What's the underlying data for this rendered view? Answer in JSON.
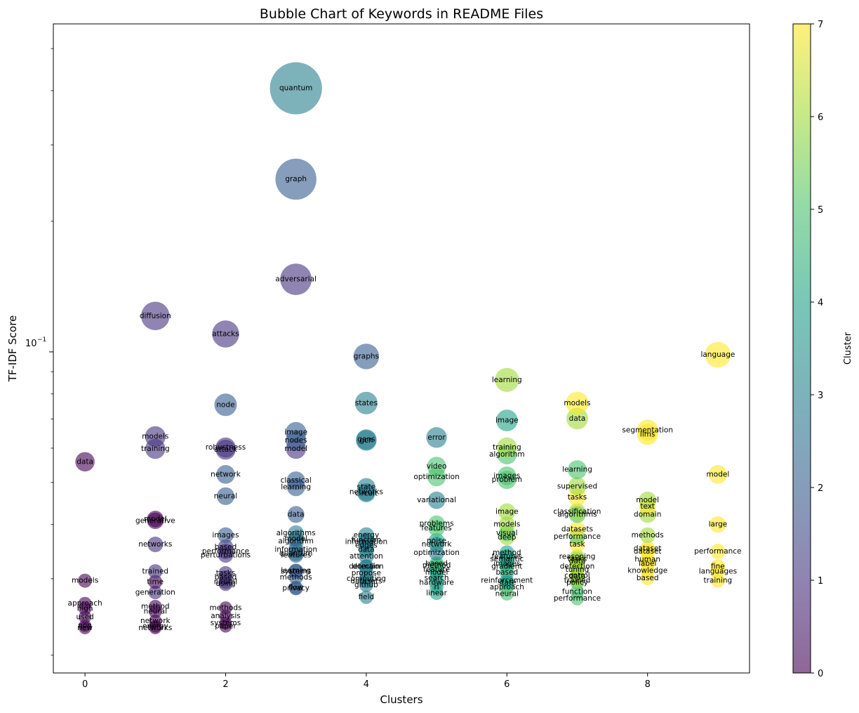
{
  "chart_data": {
    "type": "scatter",
    "title": "Bubble Chart of Keywords in README Files",
    "xlabel": "Clusters",
    "ylabel": "TF-IDF Score",
    "y_scale": "log",
    "xlim": [
      -0.45,
      9.45
    ],
    "ylim": [
      0.0182,
      0.57
    ],
    "x_ticks": [
      0,
      2,
      4,
      6,
      8
    ],
    "y_tick_label": "10^-1",
    "grid": false,
    "colormap": "viridis",
    "colorbar": {
      "label": "Cluster",
      "ticks": [
        0,
        1,
        2,
        3,
        4,
        5,
        6,
        7
      ]
    },
    "points": [
      {
        "x": 3,
        "y": 0.405,
        "label": "quantum",
        "cluster": 3
      },
      {
        "x": 3,
        "y": 0.25,
        "label": "graph",
        "cluster": 2
      },
      {
        "x": 3,
        "y": 0.147,
        "label": "adversarial",
        "cluster": 1
      },
      {
        "x": 1,
        "y": 0.121,
        "label": "diffusion",
        "cluster": 1
      },
      {
        "x": 2,
        "y": 0.11,
        "label": "attacks",
        "cluster": 1
      },
      {
        "x": 4,
        "y": 0.0976,
        "label": "graphs",
        "cluster": 2
      },
      {
        "x": 9,
        "y": 0.0985,
        "label": "language",
        "cluster": 7
      },
      {
        "x": 6,
        "y": 0.0862,
        "label": "learning",
        "cluster": 6
      },
      {
        "x": 7,
        "y": 0.0762,
        "label": "models",
        "cluster": 7
      },
      {
        "x": 2,
        "y": 0.0755,
        "label": "node",
        "cluster": 2
      },
      {
        "x": 4,
        "y": 0.0762,
        "label": "states",
        "cluster": 3
      },
      {
        "x": 7,
        "y": 0.0702,
        "label": "data",
        "cluster": 6
      },
      {
        "x": 6,
        "y": 0.0695,
        "label": "image",
        "cluster": 4
      },
      {
        "x": 8,
        "y": 0.066,
        "label": "segmentation",
        "cluster": 7
      },
      {
        "x": 8,
        "y": 0.0645,
        "label": "llms",
        "cluster": 7
      },
      {
        "x": 1,
        "y": 0.0638,
        "label": "models",
        "cluster": 1
      },
      {
        "x": 3,
        "y": 0.0652,
        "label": "image",
        "cluster": 2
      },
      {
        "x": 3,
        "y": 0.0625,
        "label": "nodes",
        "cluster": 2
      },
      {
        "x": 5,
        "y": 0.0635,
        "label": "error",
        "cluster": 3
      },
      {
        "x": 4,
        "y": 0.0628,
        "label": "gans",
        "cluster": 3
      },
      {
        "x": 4,
        "y": 0.0625,
        "label": "gcn",
        "cluster": 3
      },
      {
        "x": 1,
        "y": 0.0598,
        "label": "training",
        "cluster": 1
      },
      {
        "x": 2,
        "y": 0.0602,
        "label": "robustness",
        "cluster": 1
      },
      {
        "x": 2,
        "y": 0.0595,
        "label": "attack",
        "cluster": 1
      },
      {
        "x": 3,
        "y": 0.0598,
        "label": "model",
        "cluster": 1
      },
      {
        "x": 6,
        "y": 0.0602,
        "label": "training",
        "cluster": 6
      },
      {
        "x": 6,
        "y": 0.058,
        "label": "algorithm",
        "cluster": 5
      },
      {
        "x": 0,
        "y": 0.0558,
        "label": "data",
        "cluster": 0
      },
      {
        "x": 5,
        "y": 0.0545,
        "label": "video",
        "cluster": 5
      },
      {
        "x": 7,
        "y": 0.0535,
        "label": "learning",
        "cluster": 5
      },
      {
        "x": 2,
        "y": 0.0522,
        "label": "network",
        "cluster": 2
      },
      {
        "x": 5,
        "y": 0.0515,
        "label": "optimization",
        "cluster": 5
      },
      {
        "x": 6,
        "y": 0.0518,
        "label": "images",
        "cluster": 5
      },
      {
        "x": 6,
        "y": 0.0507,
        "label": "problem",
        "cluster": 5
      },
      {
        "x": 3,
        "y": 0.0505,
        "label": "classical",
        "cluster": 2
      },
      {
        "x": 3,
        "y": 0.0488,
        "label": "learning",
        "cluster": 2
      },
      {
        "x": 7,
        "y": 0.049,
        "label": "supervised",
        "cluster": 6
      },
      {
        "x": 4,
        "y": 0.0488,
        "label": "state",
        "cluster": 3
      },
      {
        "x": 4,
        "y": 0.0475,
        "label": "networks",
        "cluster": 3
      },
      {
        "x": 4,
        "y": 0.0472,
        "label": "circuit",
        "cluster": 3
      },
      {
        "x": 9,
        "y": 0.0522,
        "label": "model",
        "cluster": 7
      },
      {
        "x": 2,
        "y": 0.0465,
        "label": "neural",
        "cluster": 2
      },
      {
        "x": 7,
        "y": 0.0462,
        "label": "tasks",
        "cluster": 7
      },
      {
        "x": 5,
        "y": 0.0455,
        "label": "variational",
        "cluster": 3
      },
      {
        "x": 8,
        "y": 0.0455,
        "label": "model",
        "cluster": 6
      },
      {
        "x": 8,
        "y": 0.044,
        "label": "text",
        "cluster": 7
      },
      {
        "x": 6,
        "y": 0.0428,
        "label": "image",
        "cluster": 6
      },
      {
        "x": 7,
        "y": 0.0428,
        "label": "classification",
        "cluster": 6
      },
      {
        "x": 7,
        "y": 0.0422,
        "label": "algorithms",
        "cluster": 5
      },
      {
        "x": 8,
        "y": 0.0422,
        "label": "domain",
        "cluster": 6
      },
      {
        "x": 3,
        "y": 0.0422,
        "label": "data",
        "cluster": 2
      },
      {
        "x": 1,
        "y": 0.0412,
        "label": "model",
        "cluster": 0
      },
      {
        "x": 1,
        "y": 0.0408,
        "label": "generative",
        "cluster": 0
      },
      {
        "x": 5,
        "y": 0.0402,
        "label": "problems",
        "cluster": 5
      },
      {
        "x": 5,
        "y": 0.0392,
        "label": "features",
        "cluster": 5
      },
      {
        "x": 6,
        "y": 0.04,
        "label": "models",
        "cluster": 6
      },
      {
        "x": 9,
        "y": 0.04,
        "label": "large",
        "cluster": 7
      },
      {
        "x": 7,
        "y": 0.039,
        "label": "datasets",
        "cluster": 7
      },
      {
        "x": 6,
        "y": 0.0382,
        "label": "visual",
        "cluster": 5
      },
      {
        "x": 6,
        "y": 0.0374,
        "label": "deep",
        "cluster": 6
      },
      {
        "x": 3,
        "y": 0.0382,
        "label": "algorithms",
        "cluster": 3
      },
      {
        "x": 3,
        "y": 0.0371,
        "label": "model",
        "cluster": 2
      },
      {
        "x": 3,
        "y": 0.0366,
        "label": "algorithm",
        "cluster": 3
      },
      {
        "x": 4,
        "y": 0.0378,
        "label": "energy",
        "cluster": 3
      },
      {
        "x": 4,
        "y": 0.0368,
        "label": "function",
        "cluster": 3
      },
      {
        "x": 4,
        "y": 0.0365,
        "label": "information",
        "cluster": 3
      },
      {
        "x": 4,
        "y": 0.0358,
        "label": "edges",
        "cluster": 3
      },
      {
        "x": 2,
        "y": 0.0378,
        "label": "images",
        "cluster": 2
      },
      {
        "x": 7,
        "y": 0.0375,
        "label": "performance",
        "cluster": 5
      },
      {
        "x": 8,
        "y": 0.0378,
        "label": "methods",
        "cluster": 6
      },
      {
        "x": 5,
        "y": 0.0367,
        "label": "noise",
        "cluster": 4
      },
      {
        "x": 5,
        "y": 0.036,
        "label": "network",
        "cluster": 3
      },
      {
        "x": 1,
        "y": 0.036,
        "label": "networks",
        "cluster": 1
      },
      {
        "x": 7,
        "y": 0.036,
        "label": "task",
        "cluster": 7
      },
      {
        "x": 2,
        "y": 0.0355,
        "label": "based",
        "cluster": 1
      },
      {
        "x": 3,
        "y": 0.035,
        "label": "information",
        "cluster": 2
      },
      {
        "x": 3,
        "y": 0.0343,
        "label": "quantum",
        "cluster": 3
      },
      {
        "x": 3,
        "y": 0.034,
        "label": "features",
        "cluster": 2
      },
      {
        "x": 4,
        "y": 0.035,
        "label": "data",
        "cluster": 3
      },
      {
        "x": 2,
        "y": 0.0347,
        "label": "performance",
        "cluster": 1
      },
      {
        "x": 2,
        "y": 0.034,
        "label": "perturbations",
        "cluster": 1
      },
      {
        "x": 5,
        "y": 0.0344,
        "label": "optimization",
        "cluster": 3
      },
      {
        "x": 6,
        "y": 0.0344,
        "label": "method",
        "cluster": 4
      },
      {
        "x": 6,
        "y": 0.0337,
        "label": "features",
        "cluster": 4
      },
      {
        "x": 6,
        "y": 0.0333,
        "label": "semantic",
        "cluster": 4
      },
      {
        "x": 8,
        "y": 0.0352,
        "label": "dataset",
        "cluster": 7
      },
      {
        "x": 8,
        "y": 0.0347,
        "label": "dataset",
        "cluster": 7
      },
      {
        "x": 9,
        "y": 0.0347,
        "label": "performance",
        "cluster": 7
      },
      {
        "x": 4,
        "y": 0.0338,
        "label": "attention",
        "cluster": 3
      },
      {
        "x": 7,
        "y": 0.0337,
        "label": "reasoning",
        "cluster": 6
      },
      {
        "x": 7,
        "y": 0.0333,
        "label": "tasks",
        "cluster": 6
      },
      {
        "x": 7,
        "y": 0.0329,
        "label": "data",
        "cluster": 6
      },
      {
        "x": 8,
        "y": 0.0332,
        "label": "human",
        "cluster": 7
      },
      {
        "x": 8,
        "y": 0.0325,
        "label": "label",
        "cluster": 7
      },
      {
        "x": 6,
        "y": 0.0325,
        "label": "images",
        "cluster": 4
      },
      {
        "x": 6,
        "y": 0.032,
        "label": "gradient",
        "cluster": 5
      },
      {
        "x": 5,
        "y": 0.0325,
        "label": "based",
        "cluster": 5
      },
      {
        "x": 5,
        "y": 0.0322,
        "label": "method",
        "cluster": 4
      },
      {
        "x": 5,
        "y": 0.0315,
        "label": "feature",
        "cluster": 4
      },
      {
        "x": 5,
        "y": 0.031,
        "label": "model",
        "cluster": 4
      },
      {
        "x": 4,
        "y": 0.032,
        "label": "detection",
        "cluster": 3
      },
      {
        "x": 4,
        "y": 0.032,
        "label": "domain",
        "cluster": 3
      },
      {
        "x": 7,
        "y": 0.032,
        "label": "detection",
        "cluster": 6
      },
      {
        "x": 7,
        "y": 0.0315,
        "label": "tuning",
        "cluster": 6
      },
      {
        "x": 9,
        "y": 0.032,
        "label": "fine",
        "cluster": 7
      },
      {
        "x": 9,
        "y": 0.0312,
        "label": "languages",
        "cluster": 7
      },
      {
        "x": 8,
        "y": 0.0313,
        "label": "knowledge",
        "cluster": 7
      },
      {
        "x": 0,
        "y": 0.0297,
        "label": "models",
        "cluster": 0
      },
      {
        "x": 1,
        "y": 0.0312,
        "label": "trained",
        "cluster": 1
      },
      {
        "x": 1,
        "y": 0.0295,
        "label": "time",
        "cluster": 0
      },
      {
        "x": 2,
        "y": 0.0309,
        "label": "tasks",
        "cluster": 1
      },
      {
        "x": 2,
        "y": 0.0302,
        "label": "based",
        "cluster": 1
      },
      {
        "x": 2,
        "y": 0.0295,
        "label": "neural",
        "cluster": 1
      },
      {
        "x": 2,
        "y": 0.0292,
        "label": "using",
        "cluster": 1
      },
      {
        "x": 3,
        "y": 0.0313,
        "label": "learning",
        "cluster": 2
      },
      {
        "x": 3,
        "y": 0.0312,
        "label": "systems",
        "cluster": 2
      },
      {
        "x": 3,
        "y": 0.0302,
        "label": "methods",
        "cluster": 2
      },
      {
        "x": 4,
        "y": 0.0309,
        "label": "propose",
        "cluster": 3
      },
      {
        "x": 4,
        "y": 0.03,
        "label": "computing",
        "cluster": 3
      },
      {
        "x": 4,
        "y": 0.0296,
        "label": "datasets",
        "cluster": 3
      },
      {
        "x": 4,
        "y": 0.029,
        "label": "github",
        "cluster": 3
      },
      {
        "x": 5,
        "y": 0.0301,
        "label": "search",
        "cluster": 4
      },
      {
        "x": 5,
        "y": 0.0294,
        "label": "hardware",
        "cluster": 4
      },
      {
        "x": 5,
        "y": 0.0287,
        "label": "rl",
        "cluster": 4
      },
      {
        "x": 6,
        "y": 0.031,
        "label": "based",
        "cluster": 4
      },
      {
        "x": 6,
        "y": 0.0297,
        "label": "reinforcement",
        "cluster": 4
      },
      {
        "x": 6,
        "y": 0.0294,
        "label": "state",
        "cluster": 4
      },
      {
        "x": 6,
        "y": 0.0287,
        "label": "approach",
        "cluster": 5
      },
      {
        "x": 6,
        "y": 0.0277,
        "label": "neural",
        "cluster": 5
      },
      {
        "x": 7,
        "y": 0.0305,
        "label": "control",
        "cluster": 6
      },
      {
        "x": 7,
        "y": 0.0304,
        "label": "data",
        "cluster": 6
      },
      {
        "x": 7,
        "y": 0.0297,
        "label": "trained",
        "cluster": 6
      },
      {
        "x": 7,
        "y": 0.0294,
        "label": "policy",
        "cluster": 5
      },
      {
        "x": 7,
        "y": 0.028,
        "label": "function",
        "cluster": 5
      },
      {
        "x": 7,
        "y": 0.027,
        "label": "performance",
        "cluster": 5
      },
      {
        "x": 8,
        "y": 0.0301,
        "label": "based",
        "cluster": 7
      },
      {
        "x": 9,
        "y": 0.0297,
        "label": "training",
        "cluster": 7
      },
      {
        "x": 3,
        "y": 0.0285,
        "label": "privacy",
        "cluster": 2
      },
      {
        "x": 3,
        "y": 0.0286,
        "label": "flow",
        "cluster": 2
      },
      {
        "x": 1,
        "y": 0.0279,
        "label": "generation",
        "cluster": 1
      },
      {
        "x": 5,
        "y": 0.0278,
        "label": "linear",
        "cluster": 4
      },
      {
        "x": 4,
        "y": 0.0272,
        "label": "field",
        "cluster": 3
      },
      {
        "x": 0,
        "y": 0.0263,
        "label": "approach",
        "cluster": 0
      },
      {
        "x": 0,
        "y": 0.0256,
        "label": "high",
        "cluster": 0
      },
      {
        "x": 1,
        "y": 0.0259,
        "label": "method",
        "cluster": 0
      },
      {
        "x": 1,
        "y": 0.0252,
        "label": "neural",
        "cluster": 0
      },
      {
        "x": 2,
        "y": 0.0257,
        "label": "methods",
        "cluster": 0
      },
      {
        "x": 2,
        "y": 0.0246,
        "label": "analysis",
        "cluster": 0
      },
      {
        "x": 0,
        "y": 0.0245,
        "label": "used",
        "cluster": 0
      },
      {
        "x": 1,
        "y": 0.024,
        "label": "network",
        "cluster": 0
      },
      {
        "x": 2,
        "y": 0.0237,
        "label": "systems",
        "cluster": 0
      },
      {
        "x": 0,
        "y": 0.0234,
        "label": "non",
        "cluster": 0
      },
      {
        "x": 0,
        "y": 0.0231,
        "label": "new",
        "cluster": 0
      },
      {
        "x": 1,
        "y": 0.0233,
        "label": "energy",
        "cluster": 0
      },
      {
        "x": 1,
        "y": 0.0231,
        "label": "networks",
        "cluster": 0
      },
      {
        "x": 2,
        "y": 0.0233,
        "label": "paper",
        "cluster": 0
      }
    ]
  }
}
